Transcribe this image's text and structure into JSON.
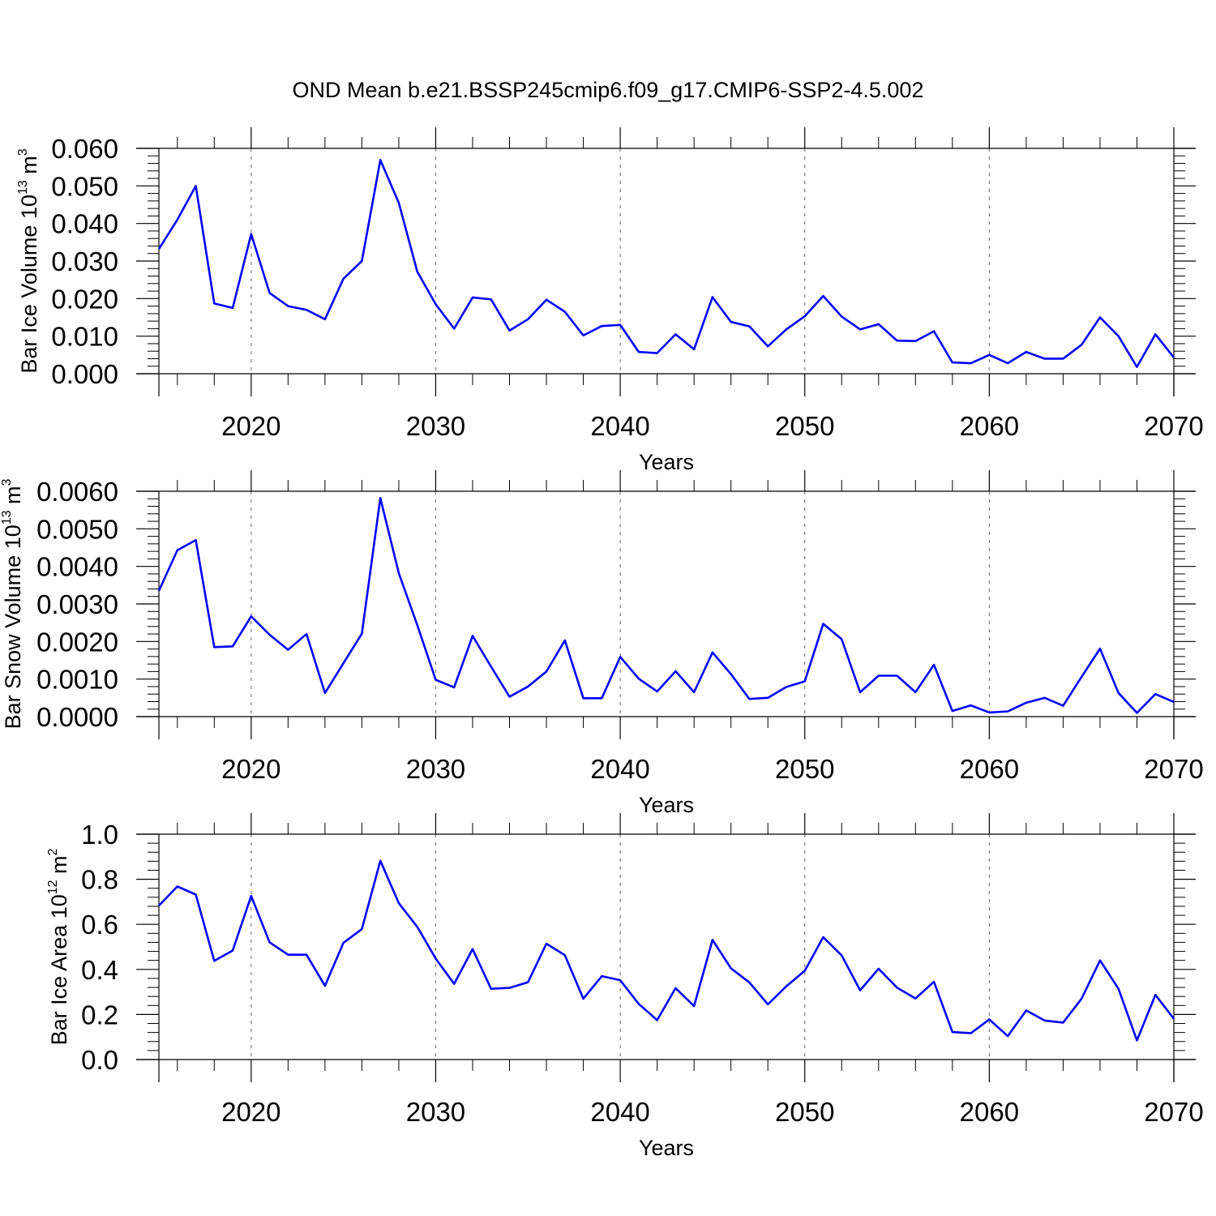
{
  "title": "OND Mean b.e21.BSSP245cmip6.f09_g17.CMIP6-SSP2-4.5.002",
  "line_color": "#0000ff",
  "grid_color": "#808080",
  "chart_data": [
    {
      "type": "line",
      "title": "",
      "xlabel": "Years",
      "ylabel": "Bar Ice Volume 10",
      "ylabel_exp": "13",
      "ylabel_unit": " m",
      "ylabel_unit_exp": "3",
      "xlim": [
        2015,
        2070
      ],
      "ylim": [
        0,
        0.06
      ],
      "yticks": [
        0,
        0.01,
        0.02,
        0.03,
        0.04,
        0.05,
        0.06
      ],
      "ytick_labels": [
        "0.000",
        "0.010",
        "0.020",
        "0.030",
        "0.040",
        "0.050",
        "0.060"
      ],
      "xticks": [
        2020,
        2030,
        2040,
        2050,
        2060,
        2070
      ],
      "xtick_labels": [
        "2020",
        "2030",
        "2040",
        "2050",
        "2060",
        "2070"
      ],
      "grid": "vertical dashed at major x ticks",
      "x": [
        2015,
        2016,
        2017,
        2018,
        2019,
        2020,
        2021,
        2022,
        2023,
        2024,
        2025,
        2026,
        2027,
        2028,
        2029,
        2030,
        2031,
        2032,
        2033,
        2034,
        2035,
        2036,
        2037,
        2038,
        2039,
        2040,
        2041,
        2042,
        2043,
        2044,
        2045,
        2046,
        2047,
        2048,
        2049,
        2050,
        2051,
        2052,
        2053,
        2054,
        2055,
        2056,
        2057,
        2058,
        2059,
        2060,
        2061,
        2062,
        2063,
        2064,
        2065,
        2066,
        2067,
        2068,
        2069,
        2070
      ],
      "y": [
        0.0332,
        0.041,
        0.05,
        0.0187,
        0.0175,
        0.0372,
        0.0215,
        0.018,
        0.017,
        0.0145,
        0.0253,
        0.03,
        0.0569,
        0.0455,
        0.0272,
        0.0185,
        0.012,
        0.0203,
        0.0198,
        0.0115,
        0.0145,
        0.0197,
        0.0165,
        0.0102,
        0.0127,
        0.013,
        0.0058,
        0.0055,
        0.0105,
        0.0065,
        0.0204,
        0.0138,
        0.0126,
        0.0073,
        0.0118,
        0.0153,
        0.0207,
        0.0152,
        0.0118,
        0.0132,
        0.0088,
        0.0087,
        0.0113,
        0.003,
        0.0028,
        0.005,
        0.0028,
        0.0058,
        0.004,
        0.004,
        0.0077,
        0.015,
        0.01,
        0.0018,
        0.0105,
        0.0043
      ]
    },
    {
      "type": "line",
      "title": "",
      "xlabel": "Years",
      "ylabel": "Bar Snow Volume 10",
      "ylabel_exp": "13",
      "ylabel_unit": " m",
      "ylabel_unit_exp": "3",
      "xlim": [
        2015,
        2070
      ],
      "ylim": [
        0,
        0.006
      ],
      "yticks": [
        0,
        0.001,
        0.002,
        0.003,
        0.004,
        0.005,
        0.006
      ],
      "ytick_labels": [
        "0.0000",
        "0.0010",
        "0.0020",
        "0.0030",
        "0.0040",
        "0.0050",
        "0.0060"
      ],
      "xticks": [
        2020,
        2030,
        2040,
        2050,
        2060,
        2070
      ],
      "xtick_labels": [
        "2020",
        "2030",
        "2040",
        "2050",
        "2060",
        "2070"
      ],
      "grid": "vertical dashed at major x ticks",
      "x": [
        2015,
        2016,
        2017,
        2018,
        2019,
        2020,
        2021,
        2022,
        2023,
        2024,
        2025,
        2026,
        2027,
        2028,
        2029,
        2030,
        2031,
        2032,
        2033,
        2034,
        2035,
        2036,
        2037,
        2038,
        2039,
        2040,
        2041,
        2042,
        2043,
        2044,
        2045,
        2046,
        2047,
        2048,
        2049,
        2050,
        2051,
        2052,
        2053,
        2054,
        2055,
        2056,
        2057,
        2058,
        2059,
        2060,
        2061,
        2062,
        2063,
        2064,
        2065,
        2066,
        2067,
        2068,
        2069,
        2070
      ],
      "y": [
        0.00335,
        0.00443,
        0.0047,
        0.00185,
        0.00187,
        0.00267,
        0.00218,
        0.00178,
        0.0022,
        0.00063,
        0.00142,
        0.00221,
        0.00582,
        0.00382,
        0.00244,
        0.00098,
        0.00078,
        0.00215,
        0.00133,
        0.00053,
        0.0008,
        0.0012,
        0.00203,
        0.00049,
        0.00049,
        0.00159,
        0.00101,
        0.00067,
        0.00121,
        0.00065,
        0.00171,
        0.00113,
        0.00047,
        0.0005,
        0.00079,
        0.00094,
        0.00247,
        0.00206,
        0.00065,
        0.00109,
        0.00109,
        0.00065,
        0.00138,
        0.00015,
        0.0003,
        0.00011,
        0.00014,
        0.00037,
        0.0005,
        0.00029,
        0.00106,
        0.00181,
        0.00063,
        0.0001,
        0.0006,
        0.00039
      ]
    },
    {
      "type": "line",
      "title": "",
      "xlabel": "Years",
      "ylabel": "Bar Ice Area 10",
      "ylabel_exp": "12",
      "ylabel_unit": " m",
      "ylabel_unit_exp": "2",
      "xlim": [
        2015,
        2070
      ],
      "ylim": [
        0,
        1.0
      ],
      "yticks": [
        0,
        0.2,
        0.4,
        0.6,
        0.8,
        1.0
      ],
      "ytick_labels": [
        "0.0",
        "0.2",
        "0.4",
        "0.6",
        "0.8",
        "1.0"
      ],
      "xticks": [
        2020,
        2030,
        2040,
        2050,
        2060,
        2070
      ],
      "xtick_labels": [
        "2020",
        "2030",
        "2040",
        "2050",
        "2060",
        "2070"
      ],
      "grid": "vertical dashed at major x ticks",
      "x": [
        2015,
        2016,
        2017,
        2018,
        2019,
        2020,
        2021,
        2022,
        2023,
        2024,
        2025,
        2026,
        2027,
        2028,
        2029,
        2030,
        2031,
        2032,
        2033,
        2034,
        2035,
        2036,
        2037,
        2038,
        2039,
        2040,
        2041,
        2042,
        2043,
        2044,
        2045,
        2046,
        2047,
        2048,
        2049,
        2050,
        2051,
        2052,
        2053,
        2054,
        2055,
        2056,
        2057,
        2058,
        2059,
        2060,
        2061,
        2062,
        2063,
        2064,
        2065,
        2066,
        2067,
        2068,
        2069,
        2070
      ],
      "y": [
        0.683,
        0.768,
        0.732,
        0.438,
        0.484,
        0.726,
        0.52,
        0.465,
        0.465,
        0.327,
        0.518,
        0.579,
        0.882,
        0.694,
        0.589,
        0.448,
        0.336,
        0.49,
        0.314,
        0.318,
        0.343,
        0.514,
        0.463,
        0.27,
        0.37,
        0.352,
        0.247,
        0.175,
        0.317,
        0.237,
        0.531,
        0.405,
        0.342,
        0.245,
        0.325,
        0.394,
        0.543,
        0.462,
        0.307,
        0.403,
        0.319,
        0.271,
        0.345,
        0.122,
        0.117,
        0.178,
        0.104,
        0.218,
        0.173,
        0.164,
        0.27,
        0.44,
        0.314,
        0.085,
        0.287,
        0.181
      ]
    }
  ]
}
